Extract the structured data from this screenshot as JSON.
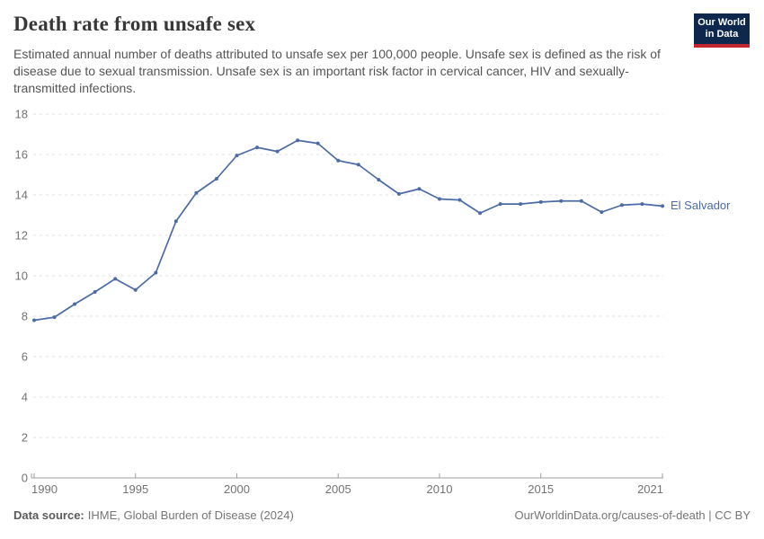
{
  "header": {
    "title": "Death rate from unsafe sex",
    "subtitle": "Estimated annual number of deaths attributed to unsafe sex per 100,000 people. Unsafe sex is defined as the risk of disease due to sexual transmission. Unsafe sex is an important risk factor in cervical cancer, HIV and sexually-transmitted infections.",
    "logo": {
      "line1": "Our World",
      "line2": "in Data"
    }
  },
  "chart_data": {
    "type": "line",
    "title": "Death rate from unsafe sex",
    "xlabel": "",
    "ylabel": "",
    "x": [
      1990,
      1991,
      1992,
      1993,
      1994,
      1995,
      1996,
      1997,
      1998,
      1999,
      2000,
      2001,
      2002,
      2003,
      2004,
      2005,
      2006,
      2007,
      2008,
      2009,
      2010,
      2011,
      2012,
      2013,
      2014,
      2015,
      2016,
      2017,
      2018,
      2019,
      2020,
      2021
    ],
    "series": [
      {
        "name": "El Salvador",
        "color": "#4C6BA5",
        "values": [
          7.8,
          7.95,
          8.6,
          9.2,
          9.85,
          9.3,
          10.15,
          12.7,
          14.1,
          14.8,
          15.95,
          16.35,
          16.15,
          16.7,
          16.55,
          15.7,
          15.5,
          14.75,
          14.05,
          14.3,
          13.8,
          13.75,
          13.1,
          13.55,
          13.55,
          13.65,
          13.7,
          13.7,
          13.15,
          13.5,
          13.55,
          13.45
        ]
      }
    ],
    "ylim": [
      0,
      18
    ],
    "yticks": [
      0,
      2,
      4,
      6,
      8,
      10,
      12,
      14,
      16,
      18
    ],
    "xticks": [
      1990,
      1995,
      2000,
      2005,
      2010,
      2015,
      2021
    ],
    "grid": "horizontal-dashed",
    "legend_position": "end-of-line"
  },
  "footer": {
    "datasource_label": "Data source:",
    "datasource_value": "IHME, Global Burden of Disease (2024)",
    "link": "OurWorldinData.org/causes-of-death | CC BY"
  },
  "colors": {
    "line": "#4C6BA5",
    "logo_navy": "#0E284D",
    "logo_red": "#C4262E",
    "gridline": "#E2E2E2",
    "axis": "#9E9E9E",
    "tick_text": "#737373"
  }
}
